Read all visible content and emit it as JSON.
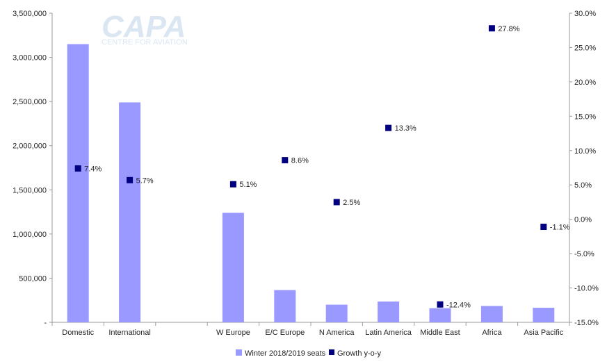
{
  "chart_data": {
    "type": "bar",
    "categories": [
      "Domestic",
      "International",
      "",
      "W Europe",
      "E/C Europe",
      "N America",
      "Latin America",
      "Middle East",
      "Africa",
      "Asia Pacific"
    ],
    "series": [
      {
        "name": "Winter 2018/2019 seats",
        "type": "bar",
        "axis": "left",
        "color": "#9999ff",
        "values": [
          3150000,
          2490000,
          null,
          1240000,
          365000,
          200000,
          235000,
          160000,
          185000,
          165000
        ]
      },
      {
        "name": "Growth y-o-y",
        "type": "scatter",
        "axis": "right",
        "color": "#000080",
        "values": [
          7.4,
          5.7,
          null,
          5.1,
          8.6,
          2.5,
          13.3,
          -12.4,
          27.8,
          -1.1
        ],
        "labels": [
          "7.4%",
          "5.7%",
          "",
          "5.1%",
          "8.6%",
          "2.5%",
          "13.3%",
          "-12.4%",
          "27.8%",
          "-1.1%"
        ]
      }
    ],
    "left_axis": {
      "ylim": [
        0,
        3500000
      ],
      "ticks": [
        0,
        500000,
        1000000,
        1500000,
        2000000,
        2500000,
        3000000,
        3500000
      ],
      "tick_labels": [
        "-",
        "500,000",
        "1,000,000",
        "1,500,000",
        "2,000,000",
        "2,500,000",
        "3,000,000",
        "3,500,000"
      ]
    },
    "right_axis": {
      "ylim": [
        -15,
        30
      ],
      "ticks": [
        -15,
        -10,
        -5,
        0,
        5,
        10,
        15,
        20,
        25,
        30
      ],
      "tick_labels": [
        "-15.0%",
        "-10.0%",
        "-5.0%",
        "0.0%",
        "5.0%",
        "10.0%",
        "15.0%",
        "20.0%",
        "25.0%",
        "30.0%"
      ]
    },
    "grid": false,
    "legend_position": "bottom",
    "legend": {
      "bar_label": "Winter 2018/2019 seats",
      "marker_label": "Growth y-o-y"
    }
  },
  "watermark": {
    "logo_text": "CAPA",
    "tagline": "CENTRE FOR AVIATION",
    "color": "#dbe6f3"
  }
}
